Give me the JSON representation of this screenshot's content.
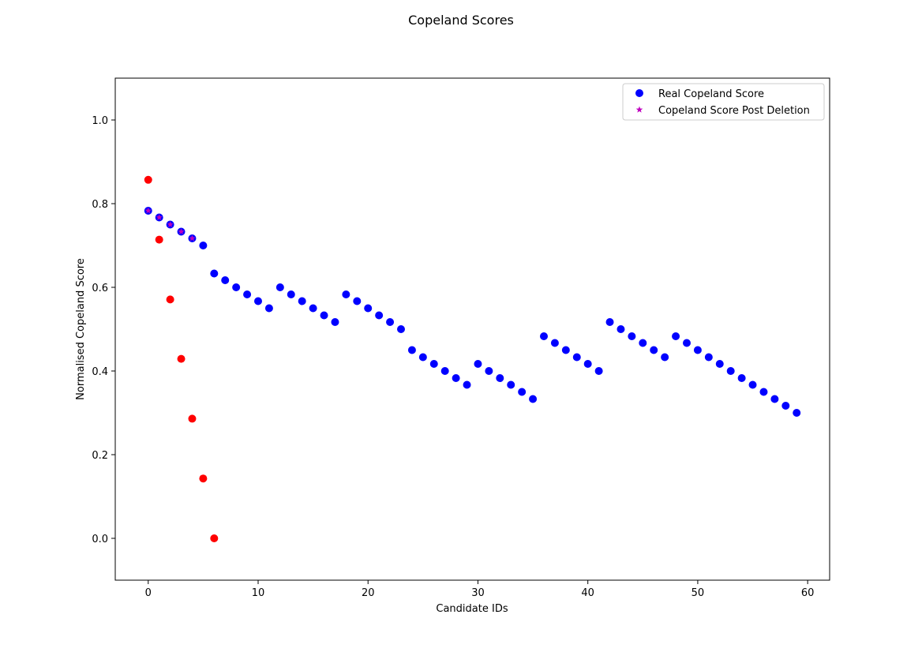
{
  "chart_data": {
    "type": "scatter",
    "title": "Copeland Scores",
    "xlabel": "Candidate IDs",
    "ylabel": "Normalised Copeland Score",
    "xlim": [
      -3,
      62
    ],
    "ylim": [
      -0.1,
      1.1
    ],
    "xticks": [
      0,
      10,
      20,
      30,
      40,
      50,
      60
    ],
    "yticks": [
      0.0,
      0.2,
      0.4,
      0.6,
      0.8,
      1.0
    ],
    "xtick_labels": [
      "0",
      "10",
      "20",
      "30",
      "40",
      "50",
      "60"
    ],
    "ytick_labels": [
      "0.0",
      "0.2",
      "0.4",
      "0.6",
      "0.8",
      "1.0"
    ],
    "grid": false,
    "legend_position": "upper right",
    "series": [
      {
        "name": "Real Copeland Score",
        "marker": "circle",
        "color": "#0000ff",
        "x": [
          0,
          1,
          2,
          3,
          4,
          5,
          6,
          7,
          8,
          9,
          10,
          11,
          12,
          13,
          14,
          15,
          16,
          17,
          18,
          19,
          20,
          21,
          22,
          23,
          24,
          25,
          26,
          27,
          28,
          29,
          30,
          31,
          32,
          33,
          34,
          35,
          36,
          37,
          38,
          39,
          40,
          41,
          42,
          43,
          44,
          45,
          46,
          47,
          48,
          49,
          50,
          51,
          52,
          53,
          54,
          55,
          56,
          57,
          58,
          59
        ],
        "y": [
          0.783,
          0.767,
          0.75,
          0.733,
          0.717,
          0.7,
          0.633,
          0.617,
          0.6,
          0.583,
          0.567,
          0.55,
          0.6,
          0.583,
          0.567,
          0.55,
          0.533,
          0.517,
          0.583,
          0.567,
          0.55,
          0.533,
          0.517,
          0.5,
          0.45,
          0.433,
          0.417,
          0.4,
          0.383,
          0.367,
          0.417,
          0.4,
          0.383,
          0.367,
          0.35,
          0.333,
          0.483,
          0.467,
          0.45,
          0.433,
          0.417,
          0.4,
          0.517,
          0.5,
          0.483,
          0.467,
          0.45,
          0.433,
          0.483,
          0.467,
          0.45,
          0.433,
          0.417,
          0.4,
          0.383,
          0.367,
          0.35,
          0.333,
          0.317,
          0.3
        ]
      },
      {
        "name": "Copeland Score Post Deletion",
        "marker": "star",
        "color": "#bf00bf",
        "x": [
          0,
          1,
          2,
          3,
          4
        ],
        "y": [
          0.783,
          0.767,
          0.75,
          0.733,
          0.717
        ]
      },
      {
        "marker": "circle",
        "color": "#ff0000",
        "x": [
          0,
          1,
          2,
          3,
          4,
          5,
          6
        ],
        "y": [
          0.857,
          0.714,
          0.571,
          0.429,
          0.286,
          0.143,
          0.0
        ]
      }
    ]
  }
}
